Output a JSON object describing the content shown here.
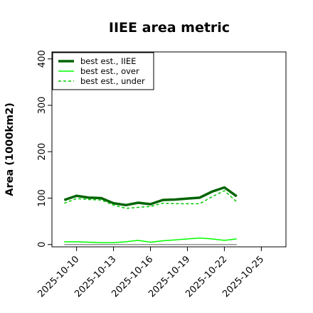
{
  "chart_data": {
    "type": "line",
    "title": "IIEE area metric",
    "xlabel": "",
    "ylabel": "Area (1000km2)",
    "xlim": [
      "2025-10-08",
      "2025-10-27"
    ],
    "ylim": [
      -5,
      415
    ],
    "xticks": [
      "2025-10-10",
      "2025-10-13",
      "2025-10-16",
      "2025-10-19",
      "2025-10-22",
      "2025-10-25"
    ],
    "yticks": [
      0,
      100,
      200,
      300,
      400
    ],
    "grid": false,
    "legend_position": "top-left",
    "series": [
      {
        "name": "best est., IIEE",
        "color": "#006400",
        "style": "solid-thick",
        "x": [
          "2025-10-09",
          "2025-10-10",
          "2025-10-11",
          "2025-10-12",
          "2025-10-13",
          "2025-10-14",
          "2025-10-15",
          "2025-10-16",
          "2025-10-17",
          "2025-10-18",
          "2025-10-19",
          "2025-10-20",
          "2025-10-21",
          "2025-10-22",
          "2025-10-23"
        ],
        "values": [
          96,
          105,
          101,
          100,
          89,
          85,
          90,
          87,
          96,
          97,
          99,
          101,
          114,
          123,
          104
        ]
      },
      {
        "name": "best est., over",
        "color": "#00ff00",
        "style": "solid",
        "x": [
          "2025-10-09",
          "2025-10-10",
          "2025-10-11",
          "2025-10-12",
          "2025-10-13",
          "2025-10-14",
          "2025-10-15",
          "2025-10-16",
          "2025-10-17",
          "2025-10-18",
          "2025-10-19",
          "2025-10-20",
          "2025-10-21",
          "2025-10-22",
          "2025-10-23"
        ],
        "values": [
          6,
          6,
          5,
          4,
          4,
          6,
          9,
          5,
          8,
          10,
          12,
          14,
          12,
          9,
          12
        ]
      },
      {
        "name": "best est., under",
        "color": "#00c800",
        "style": "dashed",
        "x": [
          "2025-10-09",
          "2025-10-10",
          "2025-10-11",
          "2025-10-12",
          "2025-10-13",
          "2025-10-14",
          "2025-10-15",
          "2025-10-16",
          "2025-10-17",
          "2025-10-18",
          "2025-10-19",
          "2025-10-20",
          "2025-10-21",
          "2025-10-22",
          "2025-10-23"
        ],
        "values": [
          89,
          99,
          97,
          96,
          85,
          78,
          80,
          82,
          89,
          88,
          88,
          88,
          103,
          116,
          92
        ]
      },
      {
        "name": "",
        "color": "#808080",
        "style": "solid-thin",
        "x": [
          "2025-10-09",
          "2025-10-23"
        ],
        "values": [
          0,
          0
        ]
      }
    ]
  }
}
